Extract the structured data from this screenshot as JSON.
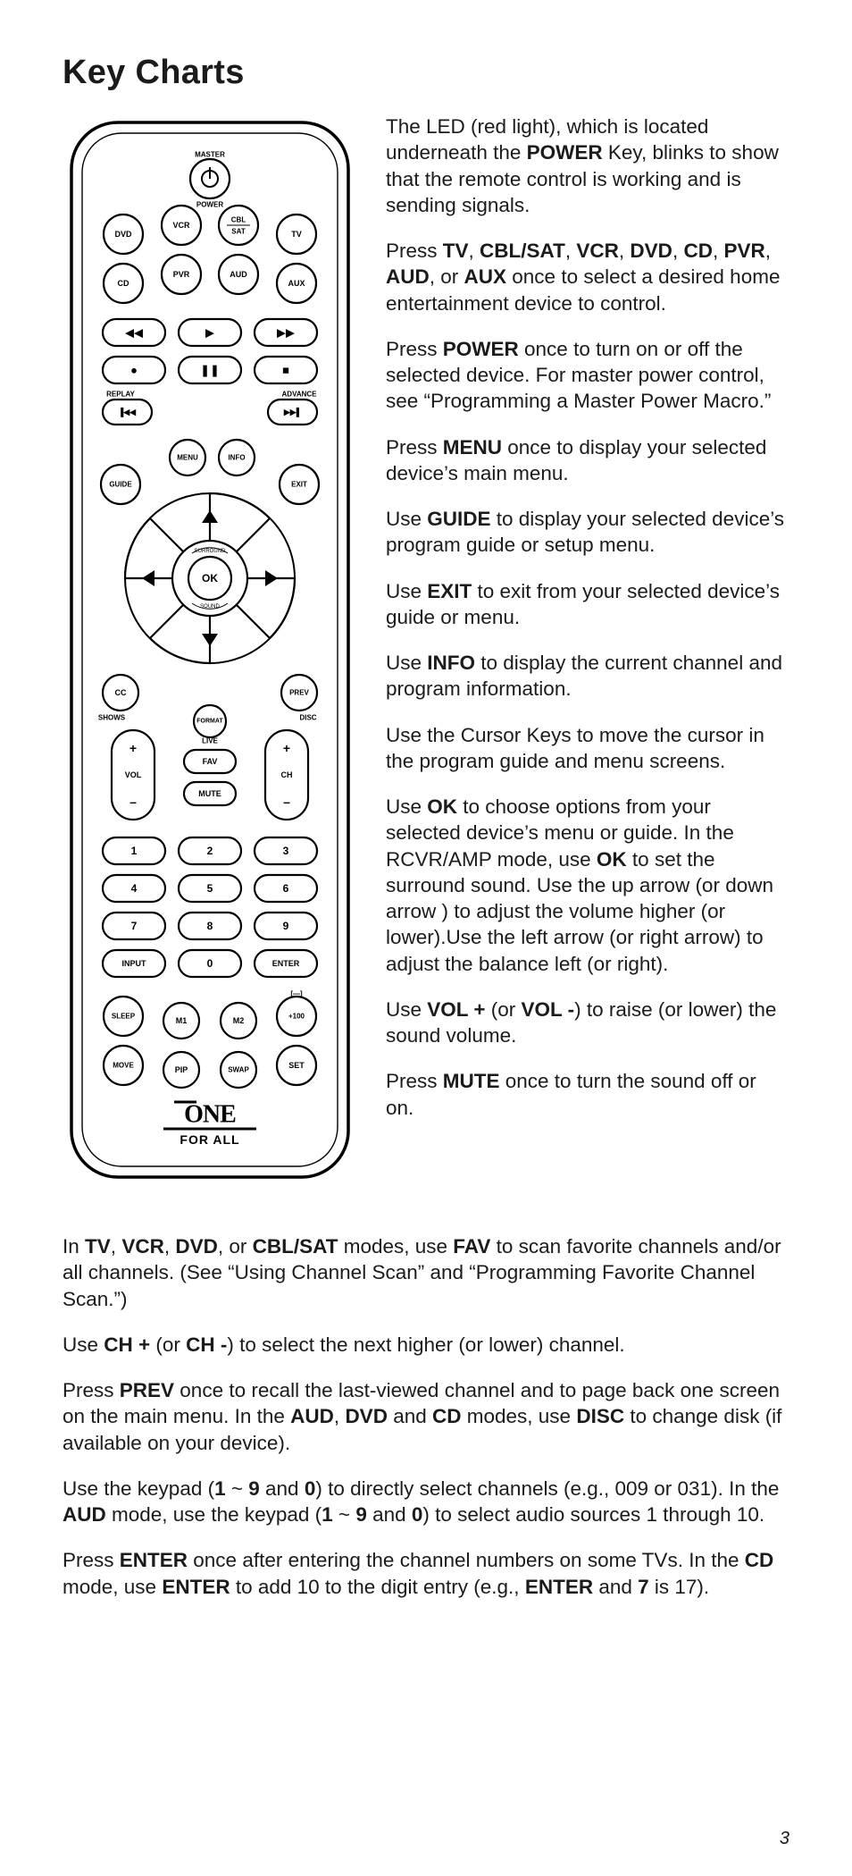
{
  "page_number": "3",
  "title": "Key Charts",
  "remote": {
    "outline": {
      "stroke": "#000000",
      "stroke_width": 3.5,
      "rx": 52,
      "fill": "#ffffff"
    },
    "power_label_top": "MASTER",
    "power_label_bottom": "POWER",
    "device_row1": [
      "DVD",
      "VCR",
      "CBL\nSAT",
      "TV"
    ],
    "device_row2": [
      "CD",
      "PVR",
      "AUD",
      "AUX"
    ],
    "transport_row1": [
      "◀◀",
      "▶",
      "▶▶"
    ],
    "transport_row2": [
      "●",
      "❚❚",
      "■"
    ],
    "replay_label": "REPLAY",
    "advance_label": "ADVANCE",
    "replay_sym": "▐◀◀",
    "advance_sym": "▶▶▌",
    "menu": "MENU",
    "info": "INFO",
    "guide": "GUIDE",
    "exit": "EXIT",
    "ok": "OK",
    "surround": "SURROUND",
    "sound": "SOUND",
    "cc": "CC",
    "prev": "PREV",
    "shows": "SHOWS",
    "disc": "DISC",
    "format": "FORMAT",
    "live": "LIVE",
    "fav": "FAV",
    "mute": "MUTE",
    "vol": "VOL",
    "ch": "CH",
    "keypad": [
      "1",
      "2",
      "3",
      "4",
      "5",
      "6",
      "7",
      "8",
      "9",
      "INPUT",
      "0",
      "ENTER"
    ],
    "bottom_row1": [
      "SLEEP",
      "M1",
      "M2",
      "+100"
    ],
    "bottom_row1_label": "[—]",
    "bottom_row2": [
      "MOVE",
      "PIP",
      "SWAP",
      "SET"
    ],
    "brand_top": "ONE",
    "brand_bottom": "FOR ALL"
  },
  "paragraphs_right": [
    "The LED (red light), which is located underneath the <b>POWER</b> Key, blinks to show that the remote control is working and is sending signals.",
    "Press <b>TV</b>, <b>CBL/SAT</b>, <b>VCR</b>, <b>DVD</b>, <b>CD</b>, <b>PVR</b>, <b>AUD</b>, or <b>AUX</b> once to select a desired home entertainment device to control.",
    "Press <b>POWER</b> once to turn on or off the selected device. For master power control, see “Programming a Master Power Macro.”",
    "Press <b>MENU</b> once to display your selected device’s main menu.",
    "Use <b>GUIDE</b> to display your selected device’s program guide or setup menu.",
    "Use <b>EXIT</b> to exit from your selected device’s guide or menu.",
    "Use <b>INFO</b> to display the current channel and program information.",
    "Use the Cursor Keys to move the cursor in the program guide and menu screens.",
    "Use <b>OK</b> to choose options from your selected device’s menu or guide. In the RCVR/AMP mode, use <b>OK</b> to set the surround sound. Use the up arrow (or down arrow ) to adjust the volume higher (or lower).Use the left arrow (or right arrow) to adjust the balance left (or right).",
    "Use <b>VOL +</b> (or <b>VOL -</b>) to raise (or lower) the sound volume.",
    "Press <b>MUTE</b> once to turn the sound off or on."
  ],
  "paragraphs_full": [
    "In <b>TV</b>, <b>VCR</b>, <b>DVD</b>, or <b>CBL/SAT</b> modes, use <b>FAV</b> to scan favorite channels and/or all channels. (See “Using Channel Scan” and “Programming Favorite Channel Scan.”)",
    "Use <b>CH +</b> (or <b>CH -</b>) to select the next higher (or lower) channel.",
    "Press <b>PREV</b> once to recall the last-viewed channel and to page back one screen on the main menu. In the <b>AUD</b>, <b>DVD</b> and <b>CD</b> modes, use <b>DISC</b> to change disk (if available on your device).",
    "Use the keypad (<b>1</b> ~ <b>9</b> and <b>0</b>) to directly select channels (e.g., 009 or 031). In the <b>AUD</b> mode, use the keypad (<b>1</b> ~ <b>9</b> and <b>0</b>) to select audio sources 1 through 10.",
    "Press <b>ENTER</b> once after entering the channel numbers on some TVs. In the <b>CD</b> mode, use <b>ENTER</b> to add 10 to the digit entry (e.g., <b>ENTER</b> and <b>7</b> is 17)."
  ]
}
